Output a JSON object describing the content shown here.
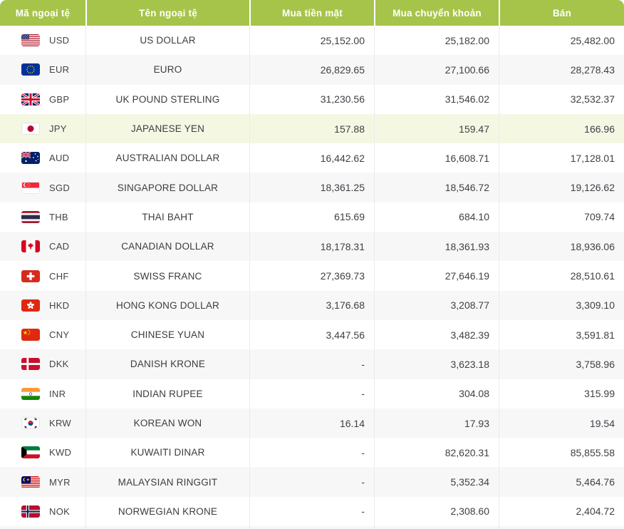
{
  "colors": {
    "header_green": "#a6c44a",
    "highlight_row": "#f4f8e3",
    "alt_row": "#f7f7f7",
    "body_text": "#3f3f46",
    "column_divider": "#ebebeb"
  },
  "table": {
    "headers": [
      {
        "key": "code",
        "label": "Mã ngoại tệ"
      },
      {
        "key": "name",
        "label": "Tên ngoại tệ"
      },
      {
        "key": "cash",
        "label": "Mua tiền mặt"
      },
      {
        "key": "transfer",
        "label": "Mua chuyển khoản"
      },
      {
        "key": "sell",
        "label": "Bán"
      }
    ],
    "rows": [
      {
        "code": "USD",
        "flag": "usd-us-flag-icon",
        "name": "US DOLLAR",
        "cash": "25,152.00",
        "transfer": "25,182.00",
        "sell": "25,482.00",
        "highlighted": false
      },
      {
        "code": "EUR",
        "flag": "eur-eu-flag-icon",
        "name": "EURO",
        "cash": "26,829.65",
        "transfer": "27,100.66",
        "sell": "28,278.43",
        "highlighted": false
      },
      {
        "code": "GBP",
        "flag": "gbp-uk-flag-icon",
        "name": "UK POUND STERLING",
        "cash": "31,230.56",
        "transfer": "31,546.02",
        "sell": "32,532.37",
        "highlighted": false
      },
      {
        "code": "JPY",
        "flag": "jpy-japan-flag-icon",
        "name": "JAPANESE YEN",
        "cash": "157.88",
        "transfer": "159.47",
        "sell": "166.96",
        "highlighted": true
      },
      {
        "code": "AUD",
        "flag": "aud-australia-flag-icon",
        "name": "AUSTRALIAN DOLLAR",
        "cash": "16,442.62",
        "transfer": "16,608.71",
        "sell": "17,128.01",
        "highlighted": false
      },
      {
        "code": "SGD",
        "flag": "sgd-singapore-flag-icon",
        "name": "SINGAPORE DOLLAR",
        "cash": "18,361.25",
        "transfer": "18,546.72",
        "sell": "19,126.62",
        "highlighted": false
      },
      {
        "code": "THB",
        "flag": "thb-thailand-flag-icon",
        "name": "THAI BAHT",
        "cash": "615.69",
        "transfer": "684.10",
        "sell": "709.74",
        "highlighted": false
      },
      {
        "code": "CAD",
        "flag": "cad-canada-flag-icon",
        "name": "CANADIAN DOLLAR",
        "cash": "18,178.31",
        "transfer": "18,361.93",
        "sell": "18,936.06",
        "highlighted": false
      },
      {
        "code": "CHF",
        "flag": "chf-switzerland-flag-icon",
        "name": "SWISS FRANC",
        "cash": "27,369.73",
        "transfer": "27,646.19",
        "sell": "28,510.61",
        "highlighted": false
      },
      {
        "code": "HKD",
        "flag": "hkd-hongkong-flag-icon",
        "name": "HONG KONG DOLLAR",
        "cash": "3,176.68",
        "transfer": "3,208.77",
        "sell": "3,309.10",
        "highlighted": false
      },
      {
        "code": "CNY",
        "flag": "cny-china-flag-icon",
        "name": "CHINESE YUAN",
        "cash": "3,447.56",
        "transfer": "3,482.39",
        "sell": "3,591.81",
        "highlighted": false
      },
      {
        "code": "DKK",
        "flag": "dkk-denmark-flag-icon",
        "name": "DANISH KRONE",
        "cash": "-",
        "transfer": "3,623.18",
        "sell": "3,758.96",
        "highlighted": false
      },
      {
        "code": "INR",
        "flag": "inr-india-flag-icon",
        "name": "INDIAN RUPEE",
        "cash": "-",
        "transfer": "304.08",
        "sell": "315.99",
        "highlighted": false
      },
      {
        "code": "KRW",
        "flag": "krw-korea-flag-icon",
        "name": "KOREAN WON",
        "cash": "16.14",
        "transfer": "17.93",
        "sell": "19.54",
        "highlighted": false
      },
      {
        "code": "KWD",
        "flag": "kwd-kuwait-flag-icon",
        "name": "KUWAITI DINAR",
        "cash": "-",
        "transfer": "82,620.31",
        "sell": "85,855.58",
        "highlighted": false
      },
      {
        "code": "MYR",
        "flag": "myr-malaysia-flag-icon",
        "name": "MALAYSIAN RINGGIT",
        "cash": "-",
        "transfer": "5,352.34",
        "sell": "5,464.76",
        "highlighted": false
      },
      {
        "code": "NOK",
        "flag": "nok-norway-flag-icon",
        "name": "NORWEGIAN KRONE",
        "cash": "-",
        "transfer": "2,308.60",
        "sell": "2,404.72",
        "highlighted": false
      }
    ]
  }
}
